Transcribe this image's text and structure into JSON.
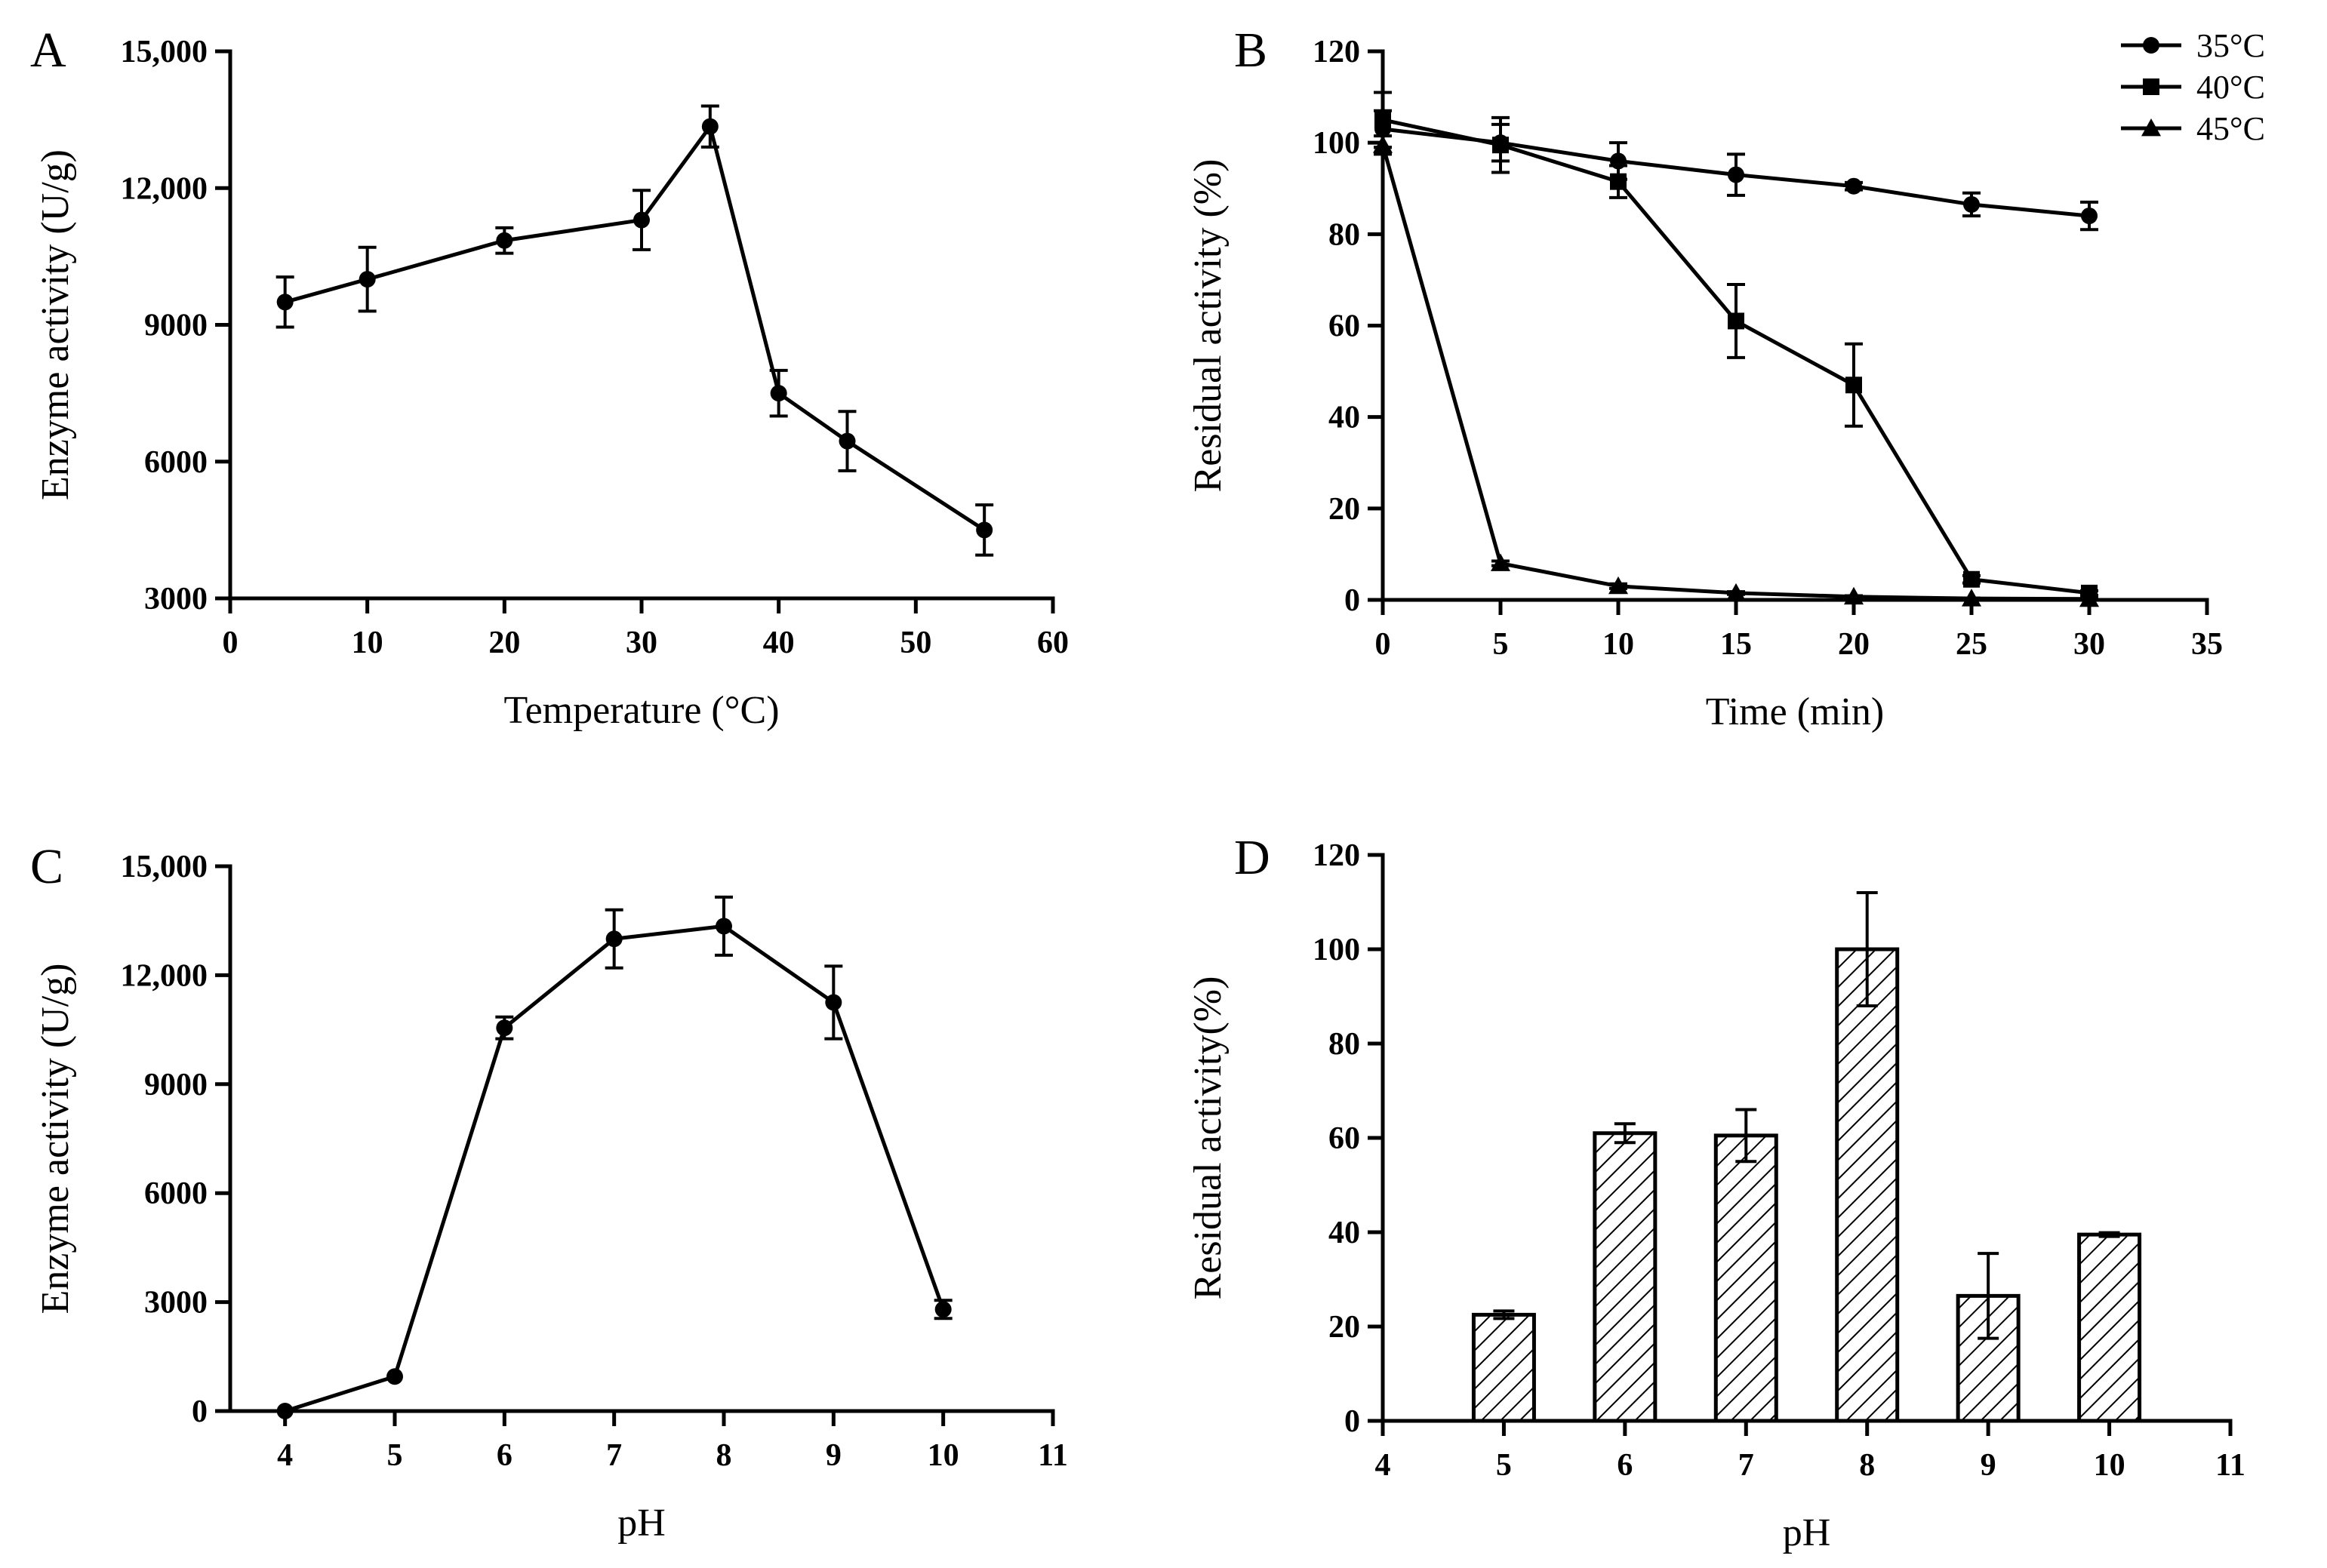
{
  "chart_data": [
    {
      "id": "A",
      "type": "line",
      "panel_label": "A",
      "xlabel": "Temperature (°C)",
      "ylabel": "Enzyme activity (U/g)",
      "xlim": [
        0,
        60
      ],
      "ylim": [
        3000,
        15000
      ],
      "xticks": [
        0,
        10,
        20,
        30,
        40,
        50,
        60
      ],
      "xtick_labels": [
        "0",
        "10",
        "20",
        "30",
        "40",
        "50",
        "60"
      ],
      "yticks": [
        3000,
        6000,
        9000,
        12000,
        15000
      ],
      "ytick_labels": [
        "3000",
        "6000",
        "9000",
        "12,000",
        "15,000"
      ],
      "grid": false,
      "series": [
        {
          "name": "Enzyme activity",
          "marker": "circle",
          "x": [
            4,
            10,
            20,
            30,
            35,
            40,
            45,
            55
          ],
          "y": [
            9500,
            10000,
            10850,
            11300,
            13350,
            7500,
            6450,
            4500
          ],
          "err": [
            550,
            700,
            280,
            650,
            450,
            500,
            650,
            550
          ]
        }
      ]
    },
    {
      "id": "B",
      "type": "line",
      "panel_label": "B",
      "xlabel": "Time (min)",
      "ylabel": "Residual activity (%)",
      "xlim": [
        0,
        35
      ],
      "ylim": [
        0,
        120
      ],
      "xticks": [
        0,
        5,
        10,
        15,
        20,
        25,
        30,
        35
      ],
      "xtick_labels": [
        "0",
        "5",
        "10",
        "15",
        "20",
        "25",
        "30",
        "35"
      ],
      "yticks": [
        0,
        20,
        40,
        60,
        80,
        100,
        120
      ],
      "ytick_labels": [
        "0",
        "20",
        "40",
        "60",
        "80",
        "100",
        "120"
      ],
      "grid": false,
      "legend_position": "top-right",
      "series": [
        {
          "name": "35°C",
          "marker": "circle",
          "x": [
            0,
            5,
            10,
            15,
            20,
            25,
            30
          ],
          "y": [
            103,
            100,
            96,
            93,
            90.5,
            86.5,
            84
          ],
          "err": [
            4,
            4,
            4,
            4.5,
            0.8,
            2.5,
            3
          ]
        },
        {
          "name": "40°C",
          "marker": "square",
          "x": [
            0,
            5,
            10,
            15,
            20,
            25,
            30
          ],
          "y": [
            105,
            99.5,
            91.5,
            61,
            47,
            4.5,
            1.5
          ],
          "err": [
            6,
            6,
            3.5,
            8,
            9,
            0.8,
            0.5
          ]
        },
        {
          "name": "45°C",
          "marker": "triangle",
          "x": [
            0,
            5,
            10,
            15,
            20,
            25,
            30
          ],
          "y": [
            99.5,
            8,
            3,
            1.5,
            0.7,
            0.3,
            0.2
          ],
          "err": [
            2,
            0.5,
            0.5,
            0.3,
            0.2,
            0.1,
            0.1
          ]
        }
      ],
      "legend": [
        "35°C",
        "40°C",
        "45°C"
      ]
    },
    {
      "id": "C",
      "type": "line",
      "panel_label": "C",
      "xlabel": "pH",
      "ylabel": "Enzyme activity (U/g)",
      "xlim": [
        3.5,
        11
      ],
      "ylim": [
        0,
        15000
      ],
      "xticks": [
        4,
        5,
        6,
        7,
        8,
        9,
        10,
        11
      ],
      "xtick_labels": [
        "4",
        "5",
        "6",
        "7",
        "8",
        "9",
        "10",
        "11"
      ],
      "yticks": [
        0,
        3000,
        6000,
        9000,
        12000,
        15000
      ],
      "ytick_labels": [
        "0",
        "3000",
        "6000",
        "9000",
        "12,000",
        "15,000"
      ],
      "grid": false,
      "series": [
        {
          "name": "Enzyme activity",
          "marker": "circle",
          "x": [
            4,
            5,
            6,
            7,
            8,
            9,
            10
          ],
          "y": [
            0,
            950,
            10550,
            13000,
            13350,
            11250,
            2800
          ],
          "err": [
            0,
            0,
            300,
            800,
            800,
            1000,
            250
          ]
        }
      ]
    },
    {
      "id": "D",
      "type": "bar",
      "panel_label": "D",
      "xlabel": "pH",
      "ylabel": "Residual activity(%)",
      "xlim": [
        4,
        11
      ],
      "ylim": [
        0,
        120
      ],
      "xticks": [
        4,
        5,
        6,
        7,
        8,
        9,
        10,
        11
      ],
      "xtick_labels": [
        "4",
        "5",
        "6",
        "7",
        "8",
        "9",
        "10",
        "11"
      ],
      "yticks": [
        0,
        20,
        40,
        60,
        80,
        100,
        120
      ],
      "ytick_labels": [
        "0",
        "20",
        "40",
        "60",
        "80",
        "100",
        "120"
      ],
      "grid": false,
      "fill": "diagonal-hatch",
      "categories": [
        "5",
        "6",
        "7",
        "8",
        "9",
        "10"
      ],
      "x": [
        5,
        6,
        7,
        8,
        9,
        10
      ],
      "values": [
        22.5,
        61,
        60.5,
        100,
        26.5,
        39.5
      ],
      "err": [
        0.8,
        2,
        5.5,
        12,
        9,
        0.4
      ]
    }
  ]
}
